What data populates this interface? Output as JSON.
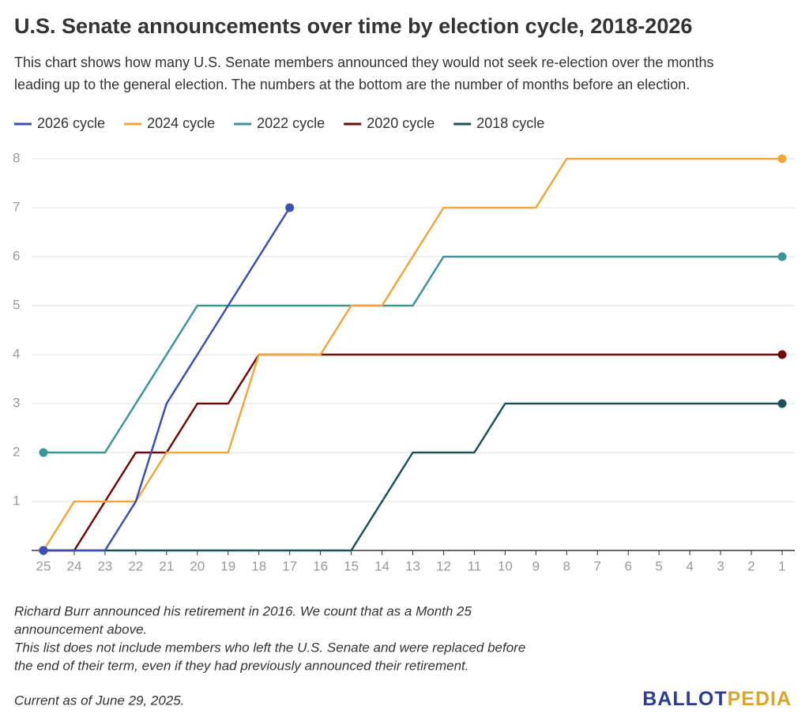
{
  "chart_data": {
    "type": "line",
    "title": "U.S. Senate announcements over time by election cycle, 2018-2026",
    "subtitle": [
      "This chart shows how many U.S. Senate members announced they would not seek re-election over the months",
      "leading up to the general election. The numbers at the bottom are the number of months before an election."
    ],
    "x": [
      25,
      24,
      23,
      22,
      21,
      20,
      19,
      18,
      17,
      16,
      15,
      14,
      13,
      12,
      11,
      10,
      9,
      8,
      7,
      6,
      5,
      4,
      3,
      2,
      1
    ],
    "xlim": [
      25,
      1
    ],
    "xticks": [
      25,
      24,
      23,
      22,
      21,
      20,
      19,
      18,
      17,
      16,
      15,
      14,
      13,
      12,
      11,
      10,
      9,
      8,
      7,
      6,
      5,
      4,
      3,
      2,
      1
    ],
    "ylim": [
      0,
      8
    ],
    "yticks": [
      1,
      2,
      3,
      4,
      5,
      6,
      7,
      8
    ],
    "grid": true,
    "legend": "top",
    "series": [
      {
        "name": "2026 cycle",
        "color": "#3a4fb0",
        "values": [
          0,
          0,
          0,
          1,
          3,
          4,
          5,
          6,
          7,
          null,
          null,
          null,
          null,
          null,
          null,
          null,
          null,
          null,
          null,
          null,
          null,
          null,
          null,
          null,
          null
        ]
      },
      {
        "name": "2024 cycle",
        "color": "#f0a63a",
        "values": [
          0,
          1,
          1,
          1,
          2,
          2,
          2,
          4,
          4,
          4,
          5,
          5,
          6,
          7,
          7,
          7,
          7,
          8,
          8,
          8,
          8,
          8,
          8,
          8,
          8
        ]
      },
      {
        "name": "2022 cycle",
        "color": "#3b9597",
        "values": [
          2,
          2,
          2,
          3,
          4,
          5,
          5,
          5,
          5,
          5,
          5,
          5,
          5,
          6,
          6,
          6,
          6,
          6,
          6,
          6,
          6,
          6,
          6,
          6,
          6
        ]
      },
      {
        "name": "2020 cycle",
        "color": "#6e0a0a",
        "values": [
          0,
          0,
          1,
          2,
          2,
          3,
          3,
          4,
          4,
          4,
          4,
          4,
          4,
          4,
          4,
          4,
          4,
          4,
          4,
          4,
          4,
          4,
          4,
          4,
          4
        ]
      },
      {
        "name": "2018 cycle",
        "color": "#1b5257",
        "values": [
          0,
          0,
          0,
          0,
          0,
          0,
          0,
          0,
          0,
          0,
          0,
          1,
          2,
          2,
          2,
          3,
          3,
          3,
          3,
          3,
          3,
          3,
          3,
          3,
          3
        ]
      }
    ],
    "notes": [
      "Richard Burr announced his retirement in 2016. We count that as a Month 25",
      "announcement above.",
      "This list does not include members who left the U.S. Senate and were replaced before",
      "the end of their term, even if they had previously announced their retirement."
    ],
    "source": "Current as of June 29, 2025.",
    "logo": [
      "BALLOT",
      "PEDIA"
    ]
  }
}
